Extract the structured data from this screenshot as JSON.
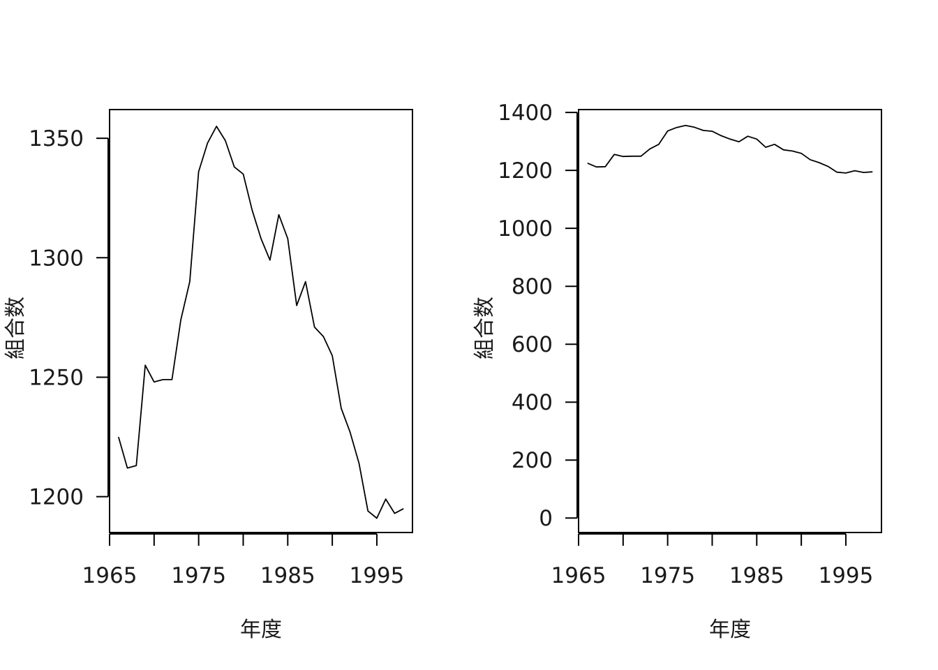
{
  "chart_data": [
    {
      "type": "line",
      "xlabel": "年度",
      "ylabel": "組合数",
      "xticks": [
        "1965",
        "1975",
        "1985",
        "1995"
      ],
      "yticks": [
        "1200",
        "1250",
        "1300",
        "1350"
      ],
      "xlim": [
        1965,
        1999
      ],
      "ylim": [
        1185,
        1362
      ],
      "x": [
        1966,
        1967,
        1968,
        1969,
        1970,
        1971,
        1972,
        1973,
        1974,
        1975,
        1976,
        1977,
        1978,
        1979,
        1980,
        1981,
        1982,
        1983,
        1984,
        1985,
        1986,
        1987,
        1988,
        1989,
        1990,
        1991,
        1992,
        1993,
        1994,
        1995,
        1996,
        1997,
        1998
      ],
      "y": [
        1225,
        1212,
        1213,
        1255,
        1248,
        1249,
        1249,
        1274,
        1290,
        1336,
        1348,
        1355,
        1349,
        1338,
        1335,
        1320,
        1308,
        1299,
        1318,
        1308,
        1280,
        1290,
        1271,
        1267,
        1259,
        1237,
        1227,
        1214,
        1194,
        1191,
        1199,
        1193,
        1195
      ]
    },
    {
      "type": "line",
      "xlabel": "年度",
      "ylabel": "組合数",
      "xticks": [
        "1965",
        "1975",
        "1985",
        "1995"
      ],
      "yticks": [
        "0",
        "200",
        "400",
        "600",
        "800",
        "1000",
        "1200",
        "1400"
      ],
      "xlim": [
        1965,
        1999
      ],
      "ylim": [
        -50,
        1410
      ],
      "x": [
        1966,
        1967,
        1968,
        1969,
        1970,
        1971,
        1972,
        1973,
        1974,
        1975,
        1976,
        1977,
        1978,
        1979,
        1980,
        1981,
        1982,
        1983,
        1984,
        1985,
        1986,
        1987,
        1988,
        1989,
        1990,
        1991,
        1992,
        1993,
        1994,
        1995,
        1996,
        1997,
        1998
      ],
      "y": [
        1225,
        1212,
        1213,
        1255,
        1248,
        1249,
        1249,
        1274,
        1290,
        1336,
        1348,
        1355,
        1349,
        1338,
        1335,
        1320,
        1308,
        1299,
        1318,
        1308,
        1280,
        1290,
        1271,
        1267,
        1259,
        1237,
        1227,
        1214,
        1194,
        1191,
        1199,
        1193,
        1195
      ]
    }
  ]
}
